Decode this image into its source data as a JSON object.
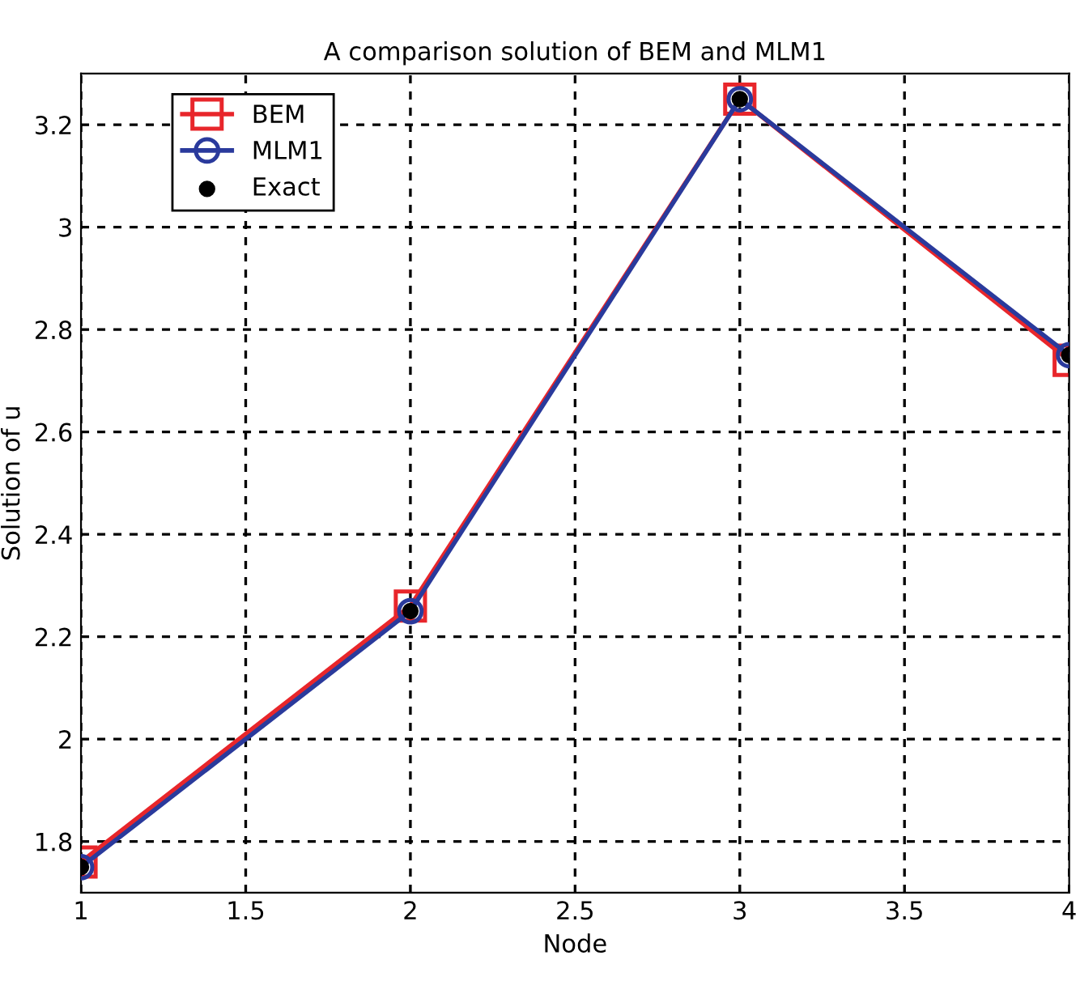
{
  "chart_data": {
    "type": "line",
    "title": "A comparison solution of BEM and MLM1",
    "xlabel": "Node",
    "ylabel": "Solution of u",
    "x": [
      1,
      2,
      3,
      4
    ],
    "series": [
      {
        "name": "BEM",
        "color": "#e8262b",
        "marker": "square",
        "values": [
          1.76,
          2.26,
          3.25,
          2.74
        ]
      },
      {
        "name": "MLM1",
        "color": "#2a3a9c",
        "marker": "circle",
        "values": [
          1.75,
          2.25,
          3.25,
          2.75
        ]
      },
      {
        "name": "Exact",
        "color": "#000000",
        "type": "scatter",
        "marker": "circle",
        "values": [
          1.75,
          2.25,
          3.25,
          2.75
        ]
      }
    ],
    "xlim": [
      1,
      4
    ],
    "xticks": [
      1,
      1.5,
      2,
      2.5,
      3,
      3.5,
      4
    ],
    "ylim": [
      1.7,
      3.3
    ],
    "yticks": [
      1.8,
      2,
      2.2,
      2.4,
      2.6,
      2.8,
      3,
      3.2
    ],
    "grid": true,
    "legend": "top left",
    "line_style": "solid"
  }
}
